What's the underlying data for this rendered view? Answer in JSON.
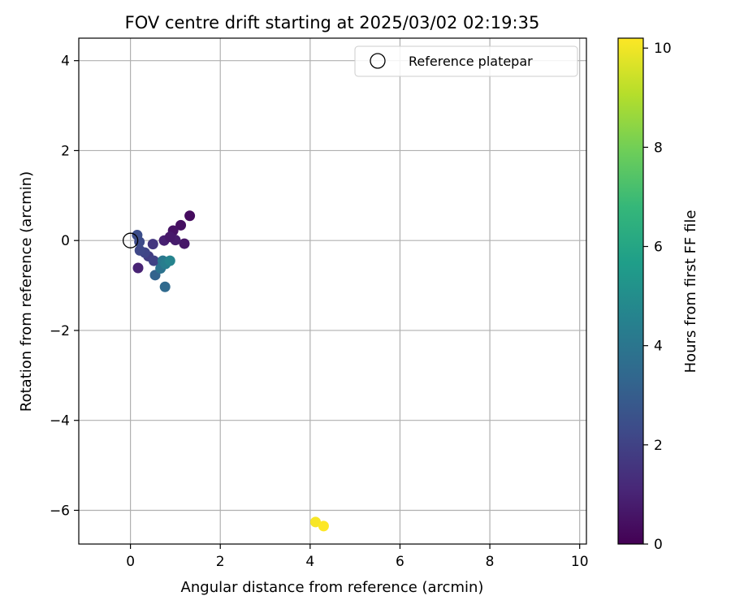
{
  "chart_data": {
    "type": "scatter",
    "title": "FOV centre drift starting at 2025/03/02 02:19:35",
    "xlabel": "Angular distance from reference (arcmin)",
    "ylabel": "Rotation from reference (arcmin)",
    "xlim": [
      -1.15,
      10.15
    ],
    "ylim": [
      -6.75,
      4.5
    ],
    "xticks": [
      0,
      2,
      4,
      6,
      8,
      10
    ],
    "yticks": [
      -6,
      -4,
      -2,
      0,
      2,
      4
    ],
    "grid": true,
    "colorbar": {
      "label": "Hours from first FF file",
      "range": [
        0,
        10.2
      ],
      "ticks": [
        0,
        2,
        4,
        6,
        8,
        10
      ],
      "colormap": [
        "#440154",
        "#482878",
        "#3e4a89",
        "#31688e",
        "#26828e",
        "#1f9e89",
        "#35b779",
        "#6ece58",
        "#b5de2b",
        "#fde725"
      ]
    },
    "reference_point": {
      "x": 0,
      "y": 0,
      "label": "Reference platepar"
    },
    "legend": {
      "position": "top-right",
      "entries": [
        "Reference platepar"
      ]
    },
    "points": [
      {
        "x": 1.32,
        "y": 0.55,
        "hours": 0.3
      },
      {
        "x": 1.12,
        "y": 0.34,
        "hours": 0.4
      },
      {
        "x": 0.95,
        "y": 0.22,
        "hours": 0.5
      },
      {
        "x": 1.2,
        "y": -0.07,
        "hours": 0.6
      },
      {
        "x": 1.0,
        "y": 0.01,
        "hours": 0.8
      },
      {
        "x": 0.75,
        "y": 0.0,
        "hours": 0.9
      },
      {
        "x": 0.88,
        "y": 0.08,
        "hours": 0.7
      },
      {
        "x": 0.17,
        "y": -0.61,
        "hours": 1.0
      },
      {
        "x": 0.5,
        "y": -0.08,
        "hours": 1.6
      },
      {
        "x": 0.4,
        "y": -0.35,
        "hours": 1.8
      },
      {
        "x": 0.52,
        "y": -0.45,
        "hours": 2.0
      },
      {
        "x": 0.32,
        "y": -0.27,
        "hours": 2.1
      },
      {
        "x": 0.21,
        "y": -0.22,
        "hours": 2.2
      },
      {
        "x": 0.2,
        "y": -0.03,
        "hours": 2.3
      },
      {
        "x": 0.15,
        "y": 0.12,
        "hours": 2.4
      },
      {
        "x": 0.55,
        "y": -0.77,
        "hours": 3.2
      },
      {
        "x": 0.77,
        "y": -1.03,
        "hours": 3.5
      },
      {
        "x": 0.67,
        "y": -0.62,
        "hours": 3.9
      },
      {
        "x": 0.72,
        "y": -0.45,
        "hours": 4.1
      },
      {
        "x": 0.78,
        "y": -0.52,
        "hours": 4.3
      },
      {
        "x": 0.88,
        "y": -0.45,
        "hours": 4.6
      },
      {
        "x": 4.12,
        "y": -6.26,
        "hours": 10.1
      },
      {
        "x": 4.3,
        "y": -6.35,
        "hours": 10.2
      }
    ]
  }
}
